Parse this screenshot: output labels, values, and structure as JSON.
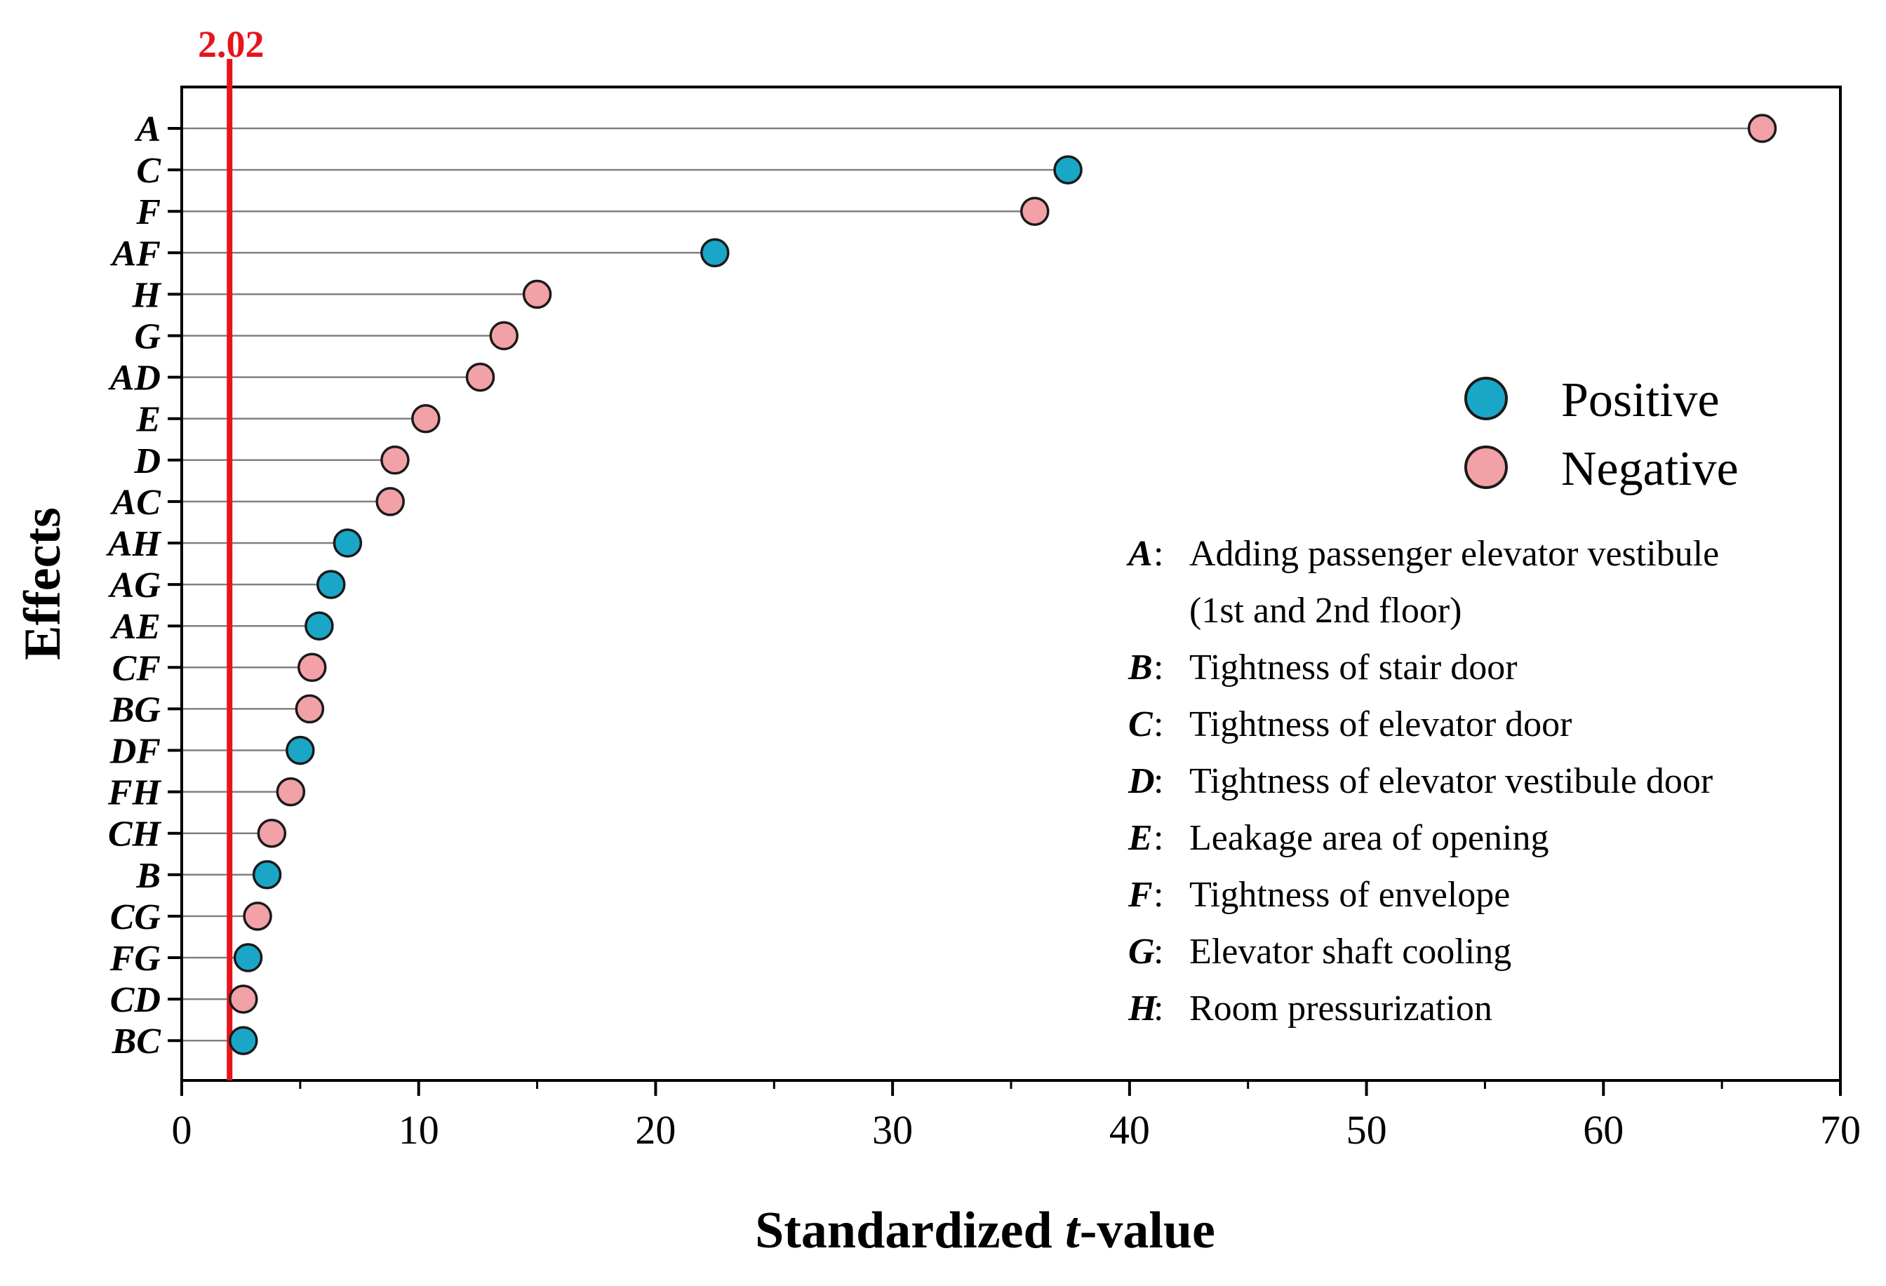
{
  "chart_data": {
    "type": "lollipop",
    "title": "",
    "xlabel_prefix": "Standardized ",
    "xlabel_italic": "t",
    "xlabel_suffix": "-value",
    "ylabel": "Effects",
    "xlim": [
      0,
      70
    ],
    "xticks": [
      0,
      10,
      20,
      30,
      40,
      50,
      60,
      70
    ],
    "reference_line": {
      "value": 2.02,
      "label": "2.02",
      "color": "#e8141b"
    },
    "colors": {
      "Positive": "#1aa7c7",
      "Negative": "#f2a1a6"
    },
    "legend": [
      {
        "name": "Positive"
      },
      {
        "name": "Negative"
      }
    ],
    "points": [
      {
        "label": "A",
        "value": 66.7,
        "sign": "Negative"
      },
      {
        "label": "C",
        "value": 37.4,
        "sign": "Positive"
      },
      {
        "label": "F",
        "value": 36.0,
        "sign": "Negative"
      },
      {
        "label": "AF",
        "value": 22.5,
        "sign": "Positive"
      },
      {
        "label": "H",
        "value": 15.0,
        "sign": "Negative"
      },
      {
        "label": "G",
        "value": 13.6,
        "sign": "Negative"
      },
      {
        "label": "AD",
        "value": 12.6,
        "sign": "Negative"
      },
      {
        "label": "E",
        "value": 10.3,
        "sign": "Negative"
      },
      {
        "label": "D",
        "value": 9.0,
        "sign": "Negative"
      },
      {
        "label": "AC",
        "value": 8.8,
        "sign": "Negative"
      },
      {
        "label": "AH",
        "value": 7.0,
        "sign": "Positive"
      },
      {
        "label": "AG",
        "value": 6.3,
        "sign": "Positive"
      },
      {
        "label": "AE",
        "value": 5.8,
        "sign": "Positive"
      },
      {
        "label": "CF",
        "value": 5.5,
        "sign": "Negative"
      },
      {
        "label": "BG",
        "value": 5.4,
        "sign": "Negative"
      },
      {
        "label": "DF",
        "value": 5.0,
        "sign": "Positive"
      },
      {
        "label": "FH",
        "value": 4.6,
        "sign": "Negative"
      },
      {
        "label": "CH",
        "value": 3.8,
        "sign": "Negative"
      },
      {
        "label": "B",
        "value": 3.6,
        "sign": "Positive"
      },
      {
        "label": "CG",
        "value": 3.2,
        "sign": "Negative"
      },
      {
        "label": "FG",
        "value": 2.8,
        "sign": "Positive"
      },
      {
        "label": "CD",
        "value": 2.6,
        "sign": "Negative"
      },
      {
        "label": "BC",
        "value": 2.6,
        "sign": "Positive"
      }
    ],
    "factor_descriptions": [
      {
        "key": "A",
        "lines": [
          "Adding passenger elevator vestibule",
          "(1st and 2nd floor)"
        ]
      },
      {
        "key": "B",
        "lines": [
          "Tightness of stair door"
        ]
      },
      {
        "key": "C",
        "lines": [
          "Tightness of elevator door"
        ]
      },
      {
        "key": "D",
        "lines": [
          "Tightness of elevator vestibule door"
        ]
      },
      {
        "key": "E",
        "lines": [
          "Leakage area of opening"
        ]
      },
      {
        "key": "F",
        "lines": [
          "Tightness of envelope"
        ]
      },
      {
        "key": "G",
        "lines": [
          "Elevator shaft cooling"
        ]
      },
      {
        "key": "H",
        "lines": [
          "Room pressurization"
        ]
      }
    ]
  }
}
